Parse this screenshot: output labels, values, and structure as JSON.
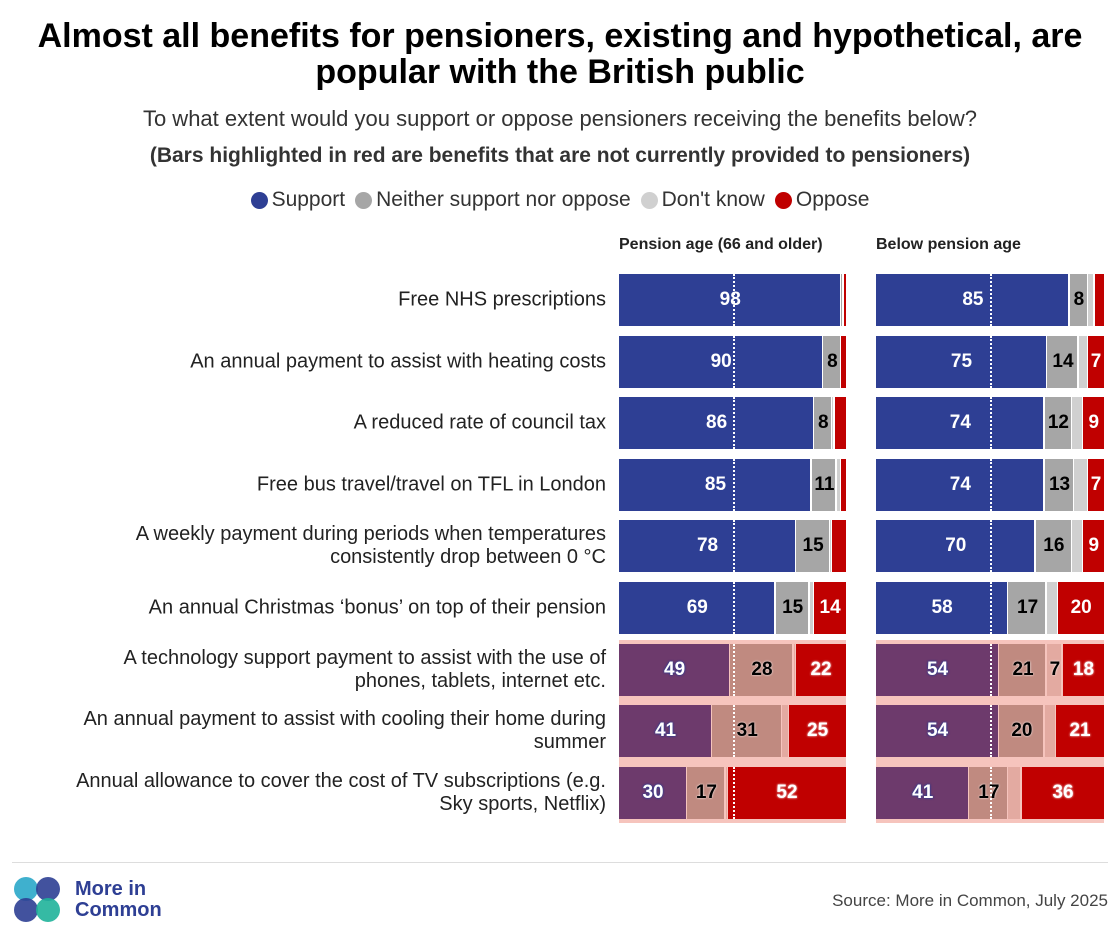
{
  "chart_data": {
    "type": "bar",
    "orientation": "horizontal",
    "stacked": true,
    "title": "Almost all benefits for pensioners, existing and hypothetical, are\npopular with the British public",
    "subtitle": "To what extent would you support or oppose pensioners receiving the benefits below?",
    "note": "(Bars highlighted in red are benefits that are not currently provided to pensioners)",
    "categories": [
      "Free NHS prescriptions",
      "An annual payment to assist with heating costs",
      "A reduced rate of council tax",
      "Free bus travel/travel on TFL in London",
      "A weekly payment during periods when temperatures\nconsistently drop between 0 °C",
      "An annual Christmas ‘bonus’ on top of their pension",
      "A technology support payment to assist with the use of\nphones, tablets, internet etc.",
      "An annual payment to assist with cooling their home during\nsummer",
      "Annual allowance to cover the cost of TV subscriptions (e.g.\nSky sports, Netflix)"
    ],
    "highlighted_rows": [
      6,
      7,
      8
    ],
    "highlight_background": "#f6c4bd",
    "series": [
      {
        "name": "Support",
        "color": "#2e3f94",
        "highlight_color": "#6d3a6c",
        "label_color": "#ffffff"
      },
      {
        "name": "Neither support nor oppose",
        "color": "#a6a6a6",
        "highlight_color": "#c08a80",
        "label_color": "#000000"
      },
      {
        "name": "Don't know",
        "color": "#d0d0d0",
        "highlight_color": "#e3aaa1",
        "label_color": "#000000"
      },
      {
        "name": "Oppose",
        "color": "#c00000",
        "highlight_color": "#c00000",
        "label_color": "#ffffff"
      }
    ],
    "xlim": [
      0,
      100
    ],
    "reference_line": 50,
    "panels": [
      {
        "title": "Pension age (66 and older)",
        "values": [
          [
            98,
            90,
            86,
            85,
            78,
            69,
            49,
            41,
            30
          ],
          [
            1,
            8,
            8,
            11,
            15,
            15,
            28,
            31,
            17
          ],
          [
            0,
            0,
            1,
            2,
            1,
            2,
            1,
            3,
            1
          ],
          [
            1,
            2,
            5,
            2,
            6,
            14,
            22,
            25,
            52
          ]
        ]
      },
      {
        "title": "Below pension age",
        "values": [
          [
            85,
            75,
            74,
            74,
            70,
            58,
            54,
            54,
            41
          ],
          [
            8,
            14,
            12,
            13,
            16,
            17,
            21,
            20,
            17
          ],
          [
            3,
            4,
            5,
            6,
            5,
            5,
            7,
            5,
            6
          ],
          [
            4,
            7,
            9,
            7,
            9,
            20,
            18,
            21,
            36
          ]
        ]
      }
    ],
    "logo": "More in\nCommon",
    "source": "Source: More in Common, July 2025"
  }
}
